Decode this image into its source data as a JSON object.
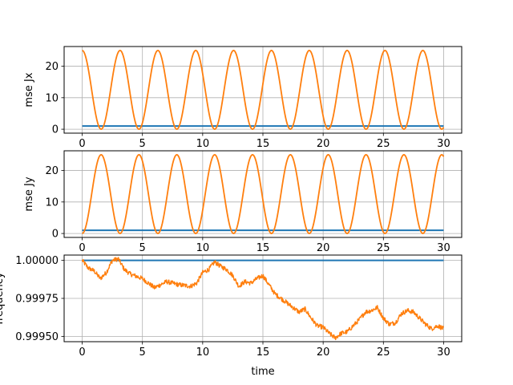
{
  "chart_data": [
    {
      "type": "line",
      "ylabel": "mse Jx",
      "xlabel": "",
      "xlim": [
        -1.5,
        31.5
      ],
      "ylim": [
        -1.25,
        26.25
      ],
      "xticks": [
        0,
        5,
        10,
        15,
        20,
        25,
        30
      ],
      "xtick_labels": [
        "0",
        "5",
        "10",
        "15",
        "20",
        "25",
        "30"
      ],
      "yticks": [
        0,
        10,
        20
      ],
      "ytick_labels": [
        "0",
        "10",
        "20"
      ],
      "grid": true,
      "series": [
        {
          "color": "#1f77b4",
          "x": [
            0,
            30
          ],
          "y": [
            1.0,
            1.0
          ]
        },
        {
          "color": "#ff7f0e",
          "formula": "25*cos^2(t)",
          "x": [
            0,
            0.4,
            0.8,
            1.2,
            1.57,
            2.0,
            2.4,
            2.8,
            3.14,
            6.28,
            30
          ],
          "y": [
            25.0,
            21.2,
            12.1,
            3.3,
            0.0,
            4.3,
            13.6,
            22.4,
            25.0,
            25.0,
            0.6
          ]
        }
      ]
    },
    {
      "type": "line",
      "ylabel": "mse Jy",
      "xlabel": "",
      "xlim": [
        -1.5,
        31.5
      ],
      "ylim": [
        -1.25,
        26.25
      ],
      "xticks": [
        0,
        5,
        10,
        15,
        20,
        25,
        30
      ],
      "xtick_labels": [
        "0",
        "5",
        "10",
        "15",
        "20",
        "25",
        "30"
      ],
      "yticks": [
        0,
        10,
        20
      ],
      "ytick_labels": [
        "0",
        "10",
        "20"
      ],
      "grid": true,
      "series": [
        {
          "color": "#1f77b4",
          "x": [
            0,
            30
          ],
          "y": [
            1.0,
            1.0
          ]
        },
        {
          "color": "#ff7f0e",
          "formula": "25*sin^2(t)",
          "x": [
            0,
            0.4,
            0.8,
            1.2,
            1.57,
            2.0,
            2.4,
            2.8,
            3.14,
            6.28,
            30
          ],
          "y": [
            0.0,
            3.8,
            12.9,
            21.7,
            25.0,
            20.7,
            11.4,
            2.6,
            0.0,
            0.0,
            24.4
          ]
        }
      ]
    },
    {
      "type": "line",
      "ylabel": "frequency",
      "xlabel": "time",
      "xlim": [
        -1.5,
        31.5
      ],
      "ylim": [
        0.999465,
        1.000035
      ],
      "xticks": [
        0,
        5,
        10,
        15,
        20,
        25,
        30
      ],
      "xtick_labels": [
        "0",
        "5",
        "10",
        "15",
        "20",
        "25",
        "30"
      ],
      "yticks": [
        0.9995,
        0.99975,
        1.0
      ],
      "ytick_labels": [
        "0.99950",
        "0.99975",
        "1.00000"
      ],
      "grid": true,
      "series": [
        {
          "color": "#1f77b4",
          "x": [
            0,
            30
          ],
          "y": [
            1.0,
            1.0
          ]
        },
        {
          "color": "#ff7f0e",
          "x": [
            0,
            0.5,
            1,
            1.5,
            2,
            2.5,
            3,
            3.5,
            4,
            5,
            6,
            7,
            8,
            9,
            9.5,
            10,
            10.5,
            11,
            11.5,
            12,
            12.5,
            13,
            13.5,
            14,
            14.5,
            15,
            15.5,
            16,
            17,
            18,
            18.5,
            19,
            19.5,
            20,
            20.5,
            21,
            21.5,
            22,
            22.5,
            23,
            23.5,
            24,
            24.5,
            25,
            25.5,
            26,
            26.5,
            27,
            27.5,
            28,
            28.5,
            29,
            29.5,
            30
          ],
          "y": [
            1.0,
            0.99995,
            0.99993,
            0.99988,
            0.99992,
            1.0,
            1.00001,
            0.99994,
            0.99991,
            0.99988,
            0.99982,
            0.99986,
            0.99984,
            0.99983,
            0.99985,
            0.99992,
            0.99994,
            0.99999,
            0.99996,
            0.99994,
            0.9999,
            0.99983,
            0.99986,
            0.99985,
            0.99988,
            0.9999,
            0.99984,
            0.99978,
            0.99972,
            0.99966,
            0.99968,
            0.99962,
            0.99957,
            0.99956,
            0.99952,
            0.99949,
            0.99952,
            0.99953,
            0.99957,
            0.99961,
            0.99966,
            0.99967,
            0.99969,
            0.99962,
            0.99958,
            0.99959,
            0.99965,
            0.99967,
            0.99966,
            0.99962,
            0.99958,
            0.99955,
            0.99957,
            0.99955
          ]
        }
      ]
    }
  ]
}
